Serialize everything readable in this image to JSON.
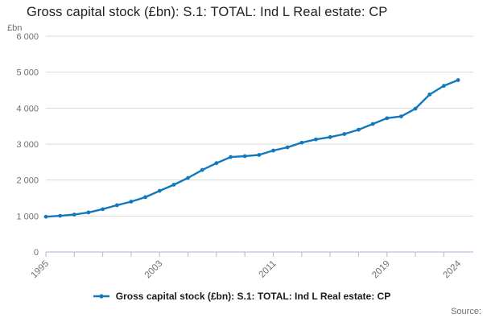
{
  "title": "Gross capital stock (£bn): S.1: TOTAL: Ind L Real estate: CP",
  "unit_label": "£bn",
  "source_label": "Source:",
  "legend": {
    "label": "Gross capital stock (£bn): S.1: TOTAL: Ind L Real estate: CP"
  },
  "colors": {
    "line": "#1178be",
    "grid": "#dadada",
    "axis": "#b6c2de",
    "tick_text": "#6f6f6f",
    "title_text": "#222222"
  },
  "chart_data": {
    "type": "line",
    "title": "Gross capital stock (£bn): S.1: TOTAL: Ind L Real estate: CP",
    "xlabel": "",
    "ylabel": "£bn",
    "x": [
      1995,
      1996,
      1997,
      1998,
      1999,
      2000,
      2001,
      2002,
      2003,
      2004,
      2005,
      2006,
      2007,
      2008,
      2009,
      2010,
      2011,
      2012,
      2013,
      2014,
      2015,
      2016,
      2017,
      2018,
      2019,
      2020,
      2021,
      2022,
      2023,
      2024
    ],
    "series": [
      {
        "name": "Gross capital stock (£bn): S.1: TOTAL: Ind L Real estate: CP",
        "values": [
          980,
          1005,
          1040,
          1100,
          1190,
          1300,
          1400,
          1525,
          1700,
          1870,
          2060,
          2280,
          2470,
          2640,
          2665,
          2700,
          2820,
          2910,
          3040,
          3130,
          3195,
          3280,
          3400,
          3560,
          3720,
          3770,
          3985,
          4380,
          4620,
          4780
        ]
      }
    ],
    "ylim": [
      0,
      6000
    ],
    "ytick_step": 1000,
    "ytick_labels": [
      "0",
      "1 000",
      "2 000",
      "3 000",
      "4 000",
      "5 000",
      "6 000"
    ],
    "xtick_every_years": 2,
    "xticks_labeled": [
      1995,
      2003,
      2011,
      2019,
      2024
    ],
    "grid": "horizontal",
    "marker": "dot",
    "legend_position": "bottom"
  }
}
